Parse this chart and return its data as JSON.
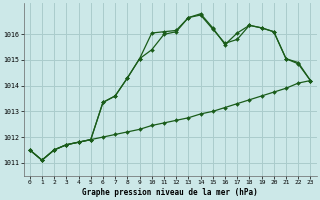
{
  "title": "Graphe pression niveau de la mer (hPa)",
  "background_color": "#cce8e8",
  "grid_color": "#aacccc",
  "line_color": "#1a5c1a",
  "xlim": [
    -0.5,
    23.5
  ],
  "ylim": [
    1010.5,
    1017.2
  ],
  "yticks": [
    1011,
    1012,
    1013,
    1014,
    1015,
    1016
  ],
  "xticks": [
    0,
    1,
    2,
    3,
    4,
    5,
    6,
    7,
    8,
    9,
    10,
    11,
    12,
    13,
    14,
    15,
    16,
    17,
    18,
    19,
    20,
    21,
    22,
    23
  ],
  "line1_x": [
    0,
    1,
    2,
    3,
    4,
    5,
    6,
    7,
    8,
    9,
    10,
    11,
    12,
    13,
    14,
    15,
    16,
    17,
    18,
    19,
    20,
    21,
    22,
    23
  ],
  "line1_y": [
    1011.5,
    1011.1,
    1011.5,
    1011.7,
    1011.8,
    1011.9,
    1012.0,
    1012.1,
    1012.2,
    1012.3,
    1012.45,
    1012.55,
    1012.65,
    1012.75,
    1012.9,
    1013.0,
    1013.15,
    1013.3,
    1013.45,
    1013.6,
    1013.75,
    1013.9,
    1014.1,
    1014.2
  ],
  "line2_x": [
    0,
    1,
    2,
    3,
    4,
    5,
    6,
    7,
    8,
    9,
    10,
    11,
    12,
    13,
    14,
    15,
    16,
    17,
    18,
    19,
    20,
    21,
    22,
    23
  ],
  "line2_y": [
    1011.5,
    1011.1,
    1011.5,
    1011.7,
    1011.8,
    1011.9,
    1013.35,
    1013.6,
    1014.3,
    1015.05,
    1015.4,
    1016.0,
    1016.1,
    1016.65,
    1016.75,
    1016.2,
    1015.65,
    1015.8,
    1016.35,
    1016.25,
    1016.1,
    1015.05,
    1014.85,
    1014.2
  ],
  "line3_x": [
    0,
    1,
    2,
    3,
    4,
    5,
    6,
    7,
    8,
    9,
    10,
    11,
    12,
    13,
    14,
    15,
    16,
    17,
    18,
    19,
    20,
    21,
    22,
    23
  ],
  "line3_y": [
    1011.5,
    1011.1,
    1011.5,
    1011.7,
    1011.8,
    1011.9,
    1013.35,
    1013.6,
    1014.3,
    1015.05,
    1016.05,
    1016.1,
    1016.15,
    1016.65,
    1016.8,
    1016.25,
    1015.6,
    1016.05,
    1016.35,
    1016.25,
    1016.1,
    1015.05,
    1014.9,
    1014.2
  ]
}
